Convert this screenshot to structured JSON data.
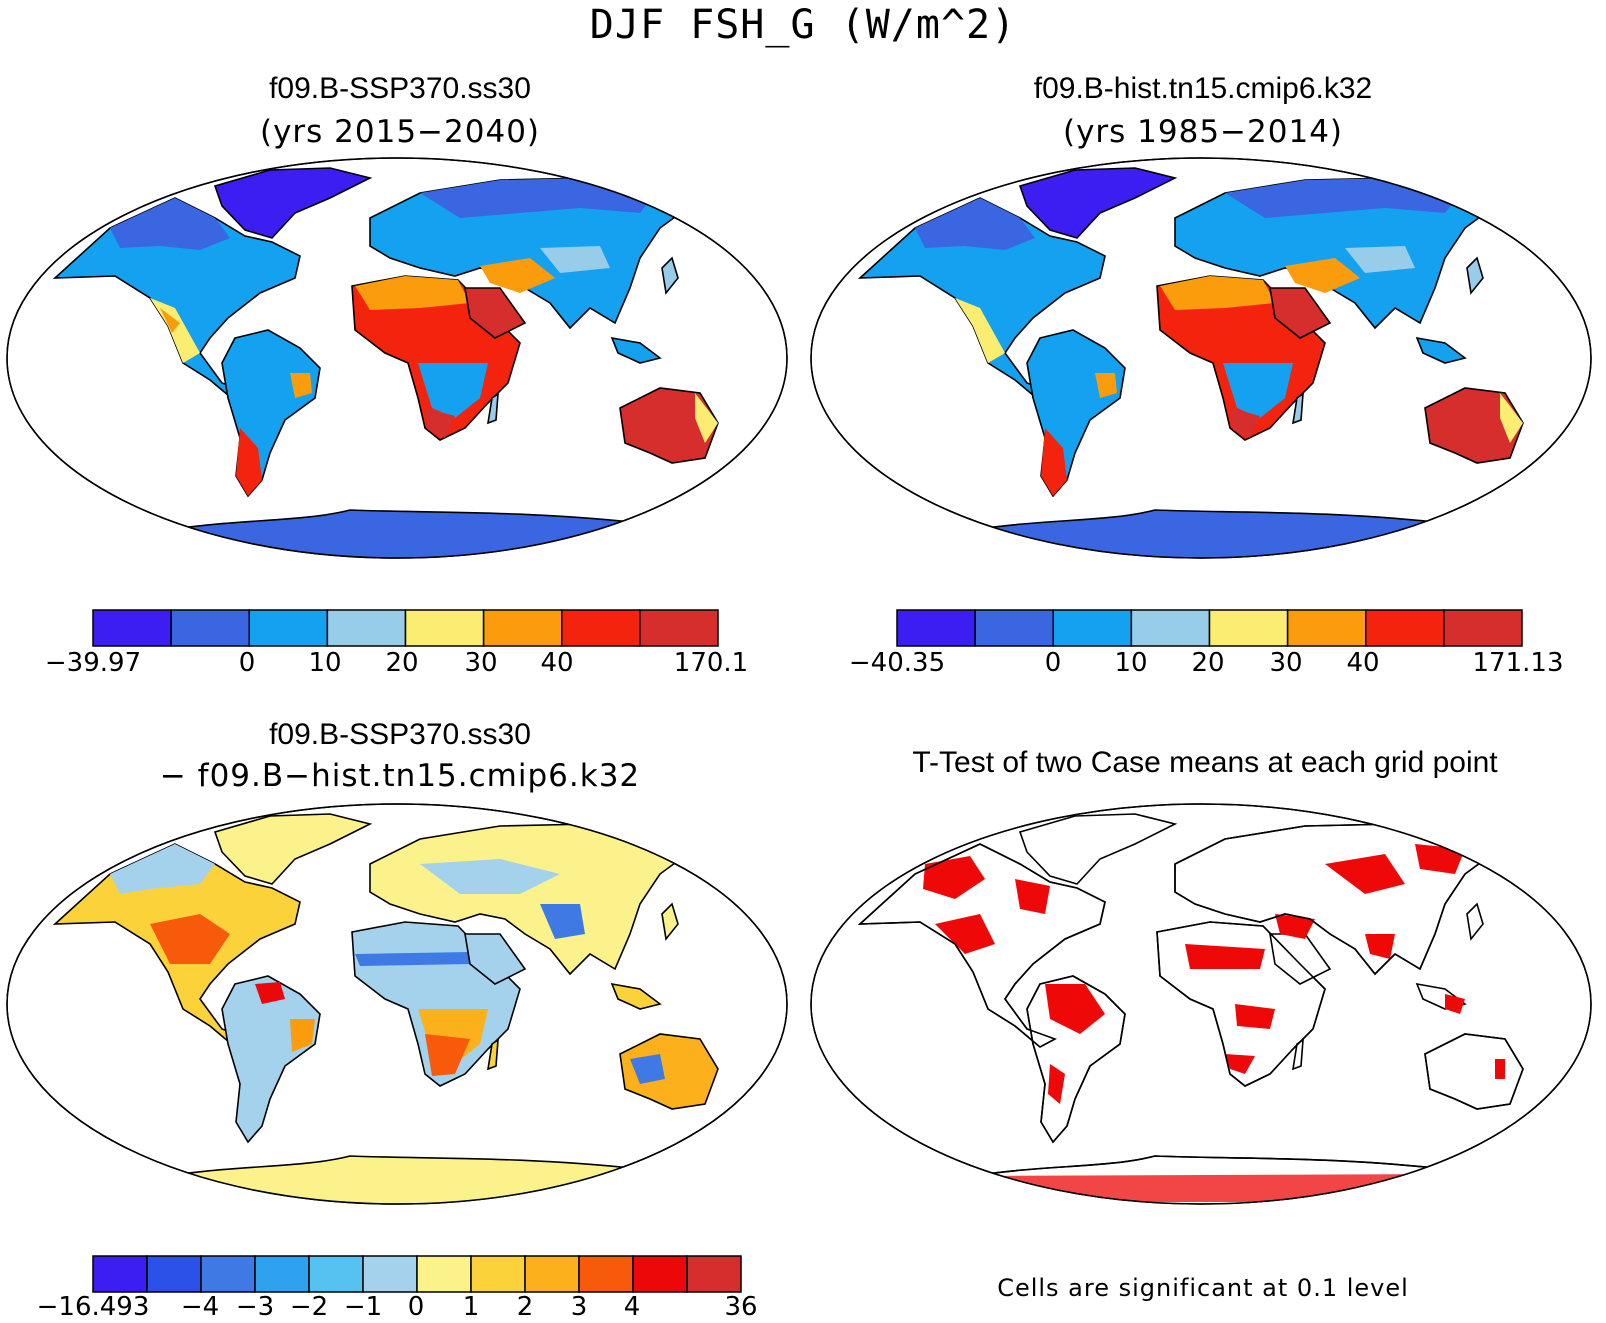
{
  "figure": {
    "title": "DJF FSH_G (W/m^2)"
  },
  "panels": {
    "top_left": {
      "case": "f09.B-SSP370.ss30",
      "years": "(yrs 2015−2040)",
      "colorbar": {
        "colors": [
          "#3c1ef2",
          "#3a66e2",
          "#14a2f0",
          "#98cdea",
          "#fbed72",
          "#fb9c0c",
          "#f4230e",
          "#d62e2c"
        ],
        "ticks": [
          "−39.97",
          "0",
          "10",
          "20",
          "30",
          "40",
          "170.1"
        ]
      }
    },
    "top_right": {
      "case": "f09.B-hist.tn15.cmip6.k32",
      "years": "(yrs 1985−2014)",
      "colorbar": {
        "colors": [
          "#3c1ef2",
          "#3a66e2",
          "#14a2f0",
          "#98cdea",
          "#fbed72",
          "#fb9c0c",
          "#f4230e",
          "#d62e2c"
        ],
        "ticks": [
          "−40.35",
          "0",
          "10",
          "20",
          "30",
          "40",
          "171.13"
        ]
      }
    },
    "bottom_left": {
      "case": "f09.B-SSP370.ss30",
      "minus_case": "− f09.B−hist.tn15.cmip6.k32",
      "colorbar": {
        "colors": [
          "#3c1ef2",
          "#2a52e8",
          "#3f7ae4",
          "#2fa2ef",
          "#55c2f2",
          "#a4d2ec",
          "#fbf28c",
          "#fbd23a",
          "#fbb01c",
          "#f85a0c",
          "#ec0808",
          "#d62e2c"
        ],
        "ticks": [
          "−16.493",
          "−4",
          "−3",
          "−2",
          "−1",
          "0",
          "1",
          "2",
          "3",
          "4",
          "36"
        ]
      }
    },
    "bottom_right": {
      "title": "T-Test of two Case means at each grid point",
      "note": "Cells are significant at 0.1 level",
      "sig_color": "#ee0808"
    }
  }
}
